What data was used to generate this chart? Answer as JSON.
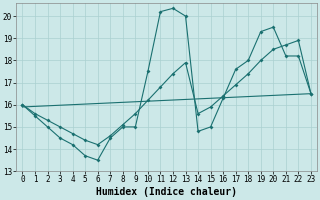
{
  "xlabel": "Humidex (Indice chaleur)",
  "bg_color": "#cce8e8",
  "line_color": "#1a7070",
  "grid_color": "#aad0d0",
  "xlim": [
    -0.5,
    23.5
  ],
  "ylim": [
    13,
    20.6
  ],
  "xticks": [
    0,
    1,
    2,
    3,
    4,
    5,
    6,
    7,
    8,
    9,
    10,
    11,
    12,
    13,
    14,
    15,
    16,
    17,
    18,
    19,
    20,
    21,
    22,
    23
  ],
  "yticks": [
    13,
    14,
    15,
    16,
    17,
    18,
    19,
    20
  ],
  "curve1_x": [
    0,
    1,
    2,
    3,
    4,
    5,
    6,
    7,
    8,
    9,
    10,
    11,
    12,
    13,
    14,
    15,
    16,
    17,
    18,
    19,
    20,
    21,
    22,
    23
  ],
  "curve1_y": [
    16.0,
    15.5,
    15.0,
    14.5,
    14.2,
    13.7,
    13.5,
    14.5,
    15.0,
    15.0,
    17.5,
    20.2,
    20.35,
    20.0,
    14.8,
    15.0,
    16.3,
    17.6,
    18.0,
    19.3,
    19.5,
    18.2,
    18.2,
    16.5
  ],
  "curve2_x": [
    0,
    1,
    2,
    3,
    4,
    5,
    6,
    7,
    8,
    9,
    10,
    11,
    12,
    13,
    14,
    15,
    16,
    17,
    18,
    19,
    20,
    21,
    22,
    23
  ],
  "curve2_y": [
    16.0,
    15.6,
    15.3,
    15.0,
    14.7,
    14.4,
    14.2,
    14.6,
    15.1,
    15.6,
    16.2,
    16.8,
    17.4,
    17.9,
    15.6,
    15.9,
    16.4,
    16.9,
    17.4,
    18.0,
    18.5,
    18.7,
    18.9,
    16.5
  ],
  "line3_x": [
    0,
    23
  ],
  "line3_y": [
    15.9,
    16.5
  ],
  "tick_fontsize": 5.5,
  "xlabel_fontsize": 7
}
